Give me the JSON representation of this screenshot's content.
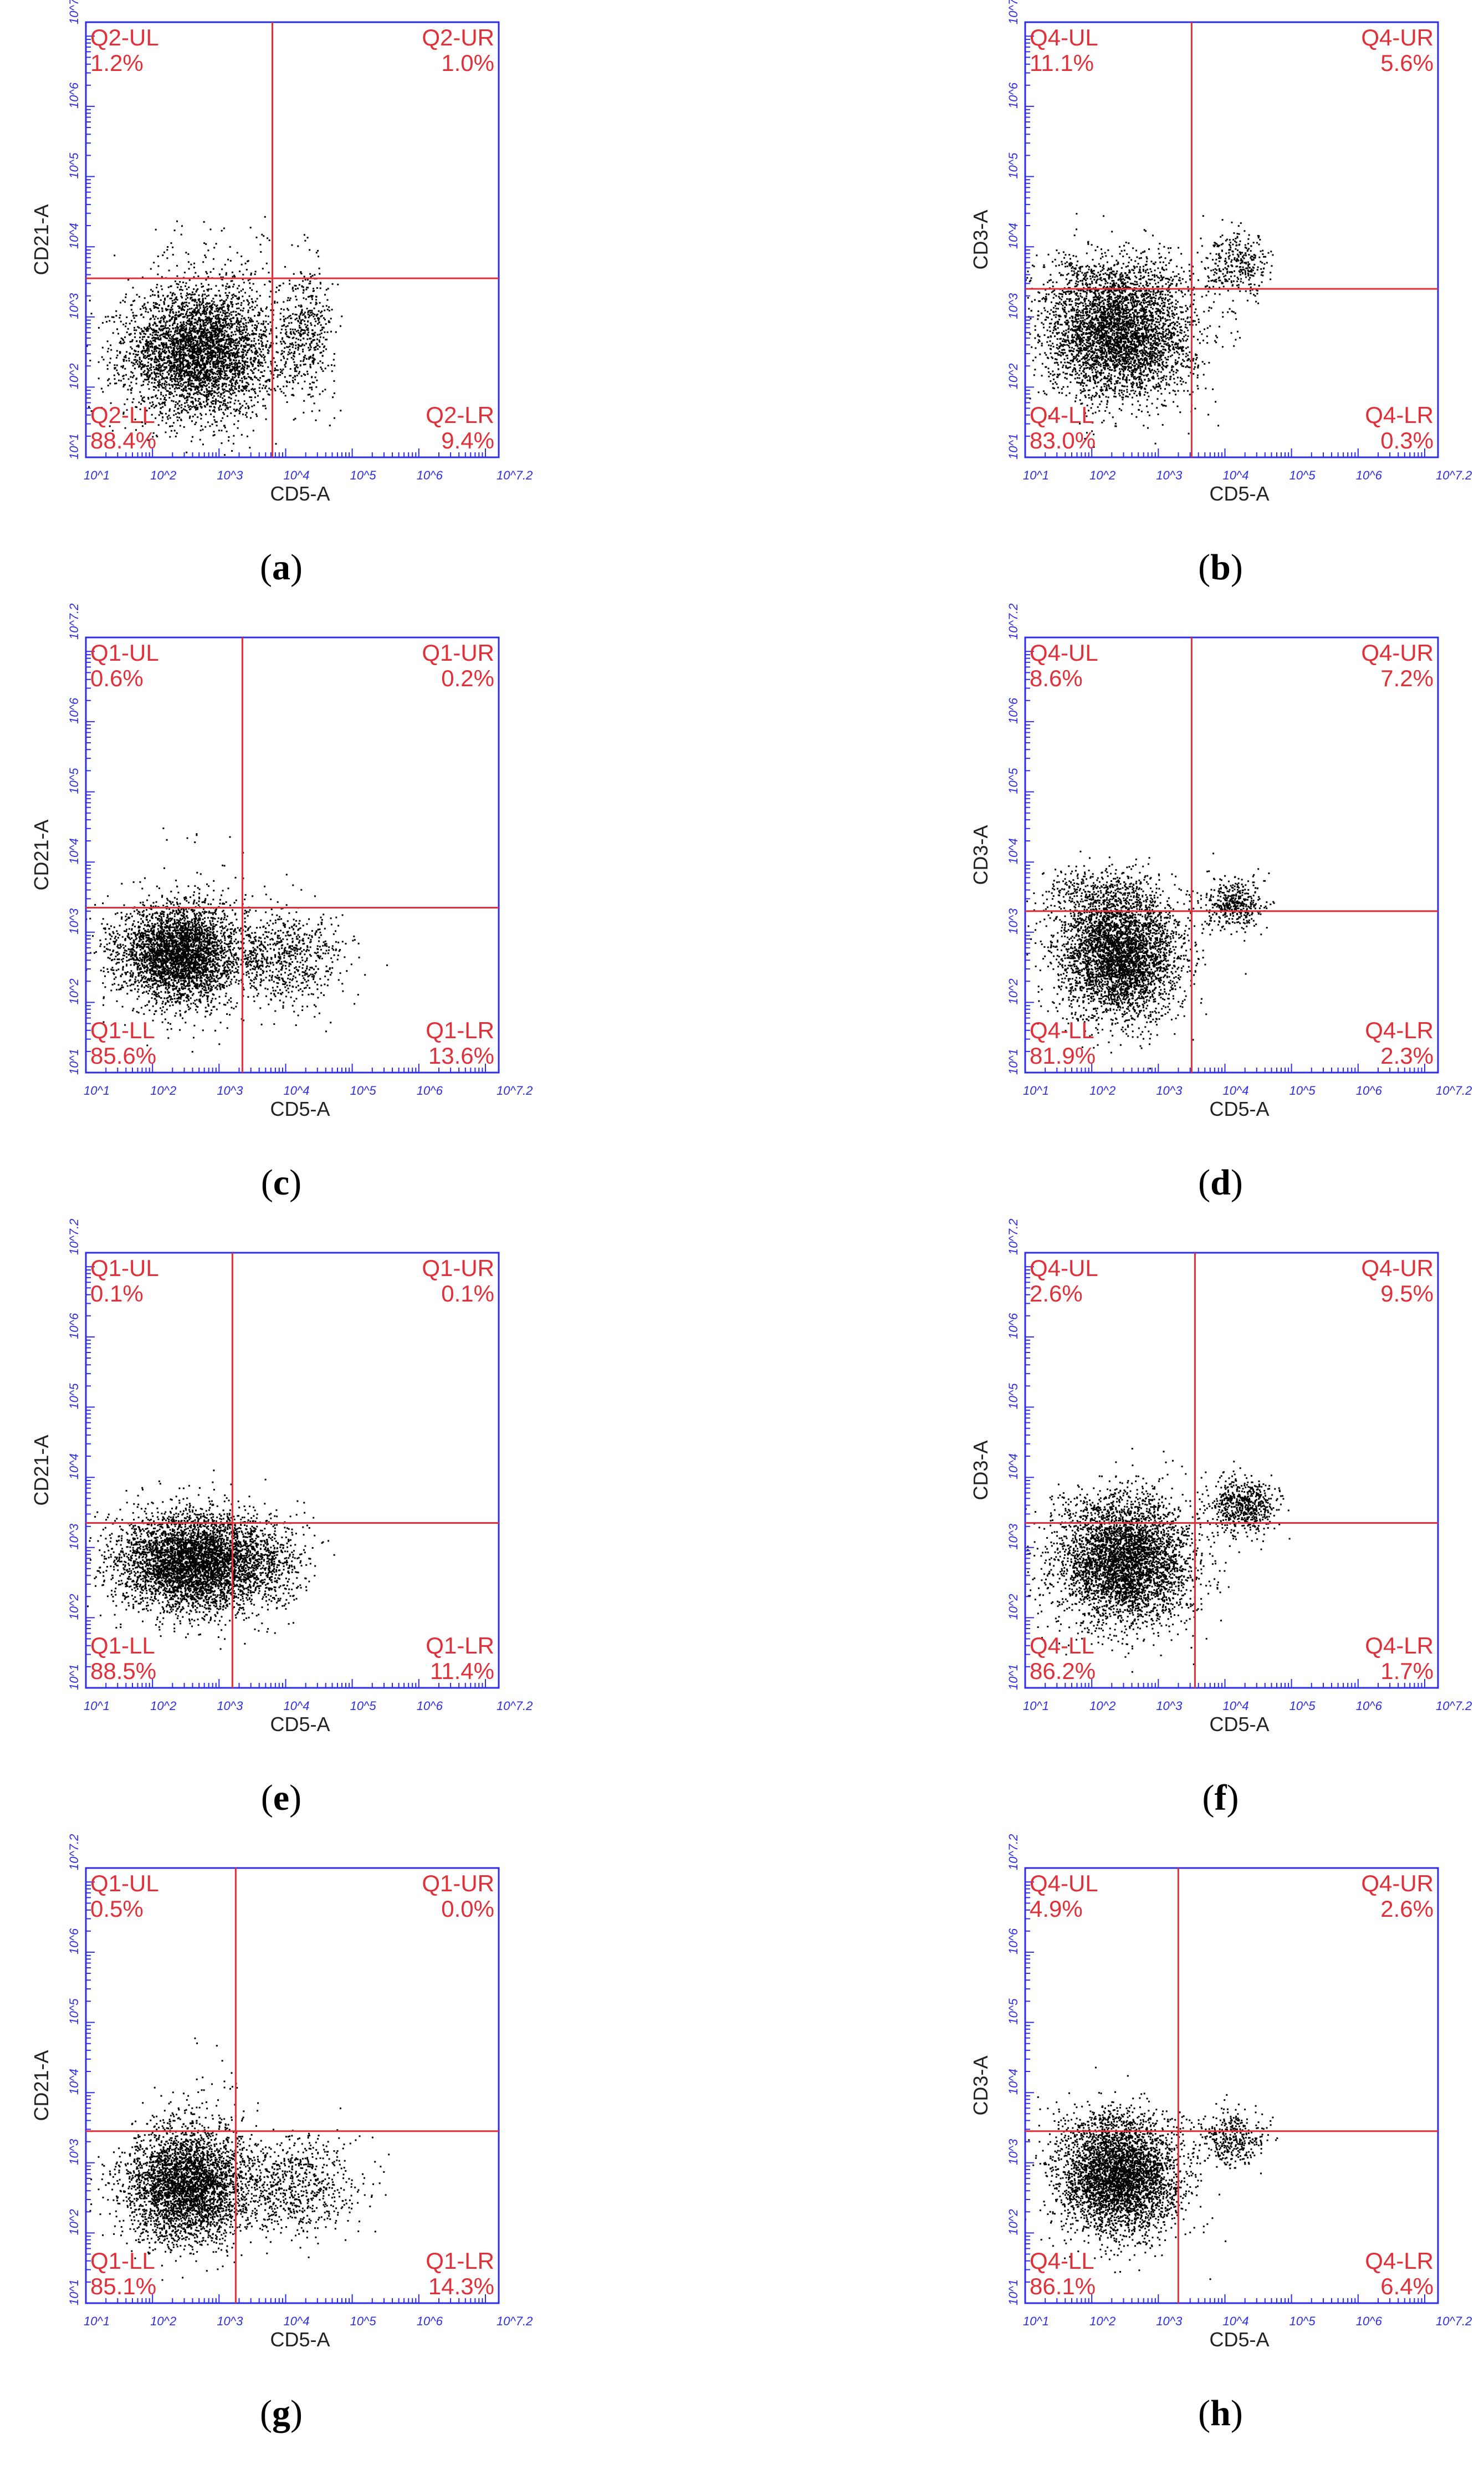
{
  "figure": {
    "panels": [
      {
        "letter": "a",
        "caption_open": "(",
        "caption_close": ")"
      },
      {
        "letter": "b",
        "caption_open": "(",
        "caption_close": ")"
      },
      {
        "letter": "c",
        "caption_open": "(",
        "caption_close": ")"
      },
      {
        "letter": "d",
        "caption_open": "(",
        "caption_close": ")"
      },
      {
        "letter": "e",
        "caption_open": "(",
        "caption_close": ")"
      },
      {
        "letter": "f",
        "caption_open": "(",
        "caption_close": ")"
      },
      {
        "letter": "g",
        "caption_open": "(",
        "caption_close": ")"
      },
      {
        "letter": "h",
        "caption_open": "(",
        "caption_close": ")"
      }
    ]
  },
  "colors": {
    "axis": "#2d2de6",
    "gate": "#e0303a",
    "points": "#000000",
    "caption": "#000000"
  },
  "chart_data": [
    {
      "type": "scatter",
      "panel": "a",
      "xlabel": "CD5-A",
      "ylabel": "CD21-A",
      "xlim": [
        1,
        7.2
      ],
      "ylim": [
        1,
        7.2
      ],
      "scale": "log10",
      "xticks": [
        "10^1",
        "10^2",
        "10^3",
        "10^4",
        "10^5",
        "10^6",
        "10^7.2"
      ],
      "yticks": [
        "10^1",
        "10^2",
        "10^3",
        "10^4",
        "10^5",
        "10^6",
        "10^7.2"
      ],
      "gate": {
        "x": 3.8,
        "y": 3.55
      },
      "quadrants": {
        "UL": "Q2-UL",
        "UR": "Q2-UR",
        "LL": "Q2-LL",
        "LR": "Q2-LR"
      },
      "percents": {
        "UL": "1.2%",
        "UR": "1.0%",
        "LL": "88.4%",
        "LR": "9.4%"
      },
      "clusters": [
        {
          "cx": 2.7,
          "cy": 2.5,
          "sx": 0.55,
          "sy": 0.45,
          "n": 4000
        },
        {
          "cx": 4.3,
          "cy": 2.8,
          "sx": 0.22,
          "sy": 0.45,
          "n": 450
        },
        {
          "cx": 3.0,
          "cy": 3.8,
          "sx": 0.6,
          "sy": 0.3,
          "n": 90
        }
      ]
    },
    {
      "type": "scatter",
      "panel": "b",
      "xlabel": "CD5-A",
      "ylabel": "CD3-A",
      "xlim": [
        1,
        7.2
      ],
      "ylim": [
        1,
        7.2
      ],
      "scale": "log10",
      "xticks": [
        "10^1",
        "10^2",
        "10^3",
        "10^4",
        "10^5",
        "10^6",
        "10^7.2"
      ],
      "yticks": [
        "10^1",
        "10^2",
        "10^3",
        "10^4",
        "10^5",
        "10^6",
        "10^7.2"
      ],
      "gate": {
        "x": 3.5,
        "y": 3.4
      },
      "quadrants": {
        "UL": "Q4-UL",
        "UR": "Q4-UR",
        "LL": "Q4-LL",
        "LR": "Q4-LR"
      },
      "percents": {
        "UL": "11.1%",
        "UR": "5.6%",
        "LL": "83.0%",
        "LR": "0.3%"
      },
      "clusters": [
        {
          "cx": 2.4,
          "cy": 2.75,
          "sx": 0.55,
          "sy": 0.45,
          "n": 3800
        },
        {
          "cx": 4.2,
          "cy": 3.75,
          "sx": 0.25,
          "sy": 0.22,
          "n": 320
        },
        {
          "cx": 2.3,
          "cy": 3.6,
          "sx": 0.6,
          "sy": 0.2,
          "n": 350
        }
      ]
    },
    {
      "type": "scatter",
      "panel": "c",
      "xlabel": "CD5-A",
      "ylabel": "CD21-A",
      "xlim": [
        1,
        7.2
      ],
      "ylim": [
        1,
        7.2
      ],
      "scale": "log10",
      "xticks": [
        "10^1",
        "10^2",
        "10^3",
        "10^4",
        "10^5",
        "10^6",
        "10^7.2"
      ],
      "yticks": [
        "10^1",
        "10^2",
        "10^3",
        "10^4",
        "10^5",
        "10^6",
        "10^7.2"
      ],
      "gate": {
        "x": 3.35,
        "y": 3.35
      },
      "quadrants": {
        "UL": "Q1-UL",
        "UR": "Q1-UR",
        "LL": "Q1-LL",
        "LR": "Q1-LR"
      },
      "percents": {
        "UL": "0.6%",
        "UR": "0.2%",
        "LL": "85.6%",
        "LR": "13.6%"
      },
      "clusters": [
        {
          "cx": 2.4,
          "cy": 2.7,
          "sx": 0.45,
          "sy": 0.35,
          "n": 3600
        },
        {
          "cx": 4.0,
          "cy": 2.65,
          "sx": 0.45,
          "sy": 0.35,
          "n": 700
        },
        {
          "cx": 2.8,
          "cy": 3.9,
          "sx": 0.4,
          "sy": 0.3,
          "n": 20
        }
      ]
    },
    {
      "type": "scatter",
      "panel": "d",
      "xlabel": "CD5-A",
      "ylabel": "CD3-A",
      "xlim": [
        1,
        7.2
      ],
      "ylim": [
        1,
        7.2
      ],
      "scale": "log10",
      "xticks": [
        "10^1",
        "10^2",
        "10^3",
        "10^4",
        "10^5",
        "10^6",
        "10^7.2"
      ],
      "yticks": [
        "10^1",
        "10^2",
        "10^3",
        "10^4",
        "10^5",
        "10^6",
        "10^7.2"
      ],
      "gate": {
        "x": 3.5,
        "y": 3.3
      },
      "quadrants": {
        "UL": "Q4-UL",
        "UR": "Q4-UR",
        "LL": "Q4-LL",
        "LR": "Q4-LR"
      },
      "percents": {
        "UL": "8.6%",
        "UR": "7.2%",
        "LL": "81.9%",
        "LR": "2.3%"
      },
      "clusters": [
        {
          "cx": 2.4,
          "cy": 2.7,
          "sx": 0.45,
          "sy": 0.45,
          "n": 3700
        },
        {
          "cx": 4.1,
          "cy": 3.4,
          "sx": 0.22,
          "sy": 0.18,
          "n": 420
        },
        {
          "cx": 2.2,
          "cy": 3.55,
          "sx": 0.5,
          "sy": 0.2,
          "n": 300
        }
      ]
    },
    {
      "type": "scatter",
      "panel": "e",
      "xlabel": "CD5-A",
      "ylabel": "CD21-A",
      "xlim": [
        1,
        7.2
      ],
      "ylim": [
        1,
        7.2
      ],
      "scale": "log10",
      "xticks": [
        "10^1",
        "10^2",
        "10^3",
        "10^4",
        "10^5",
        "10^6",
        "10^7.2"
      ],
      "yticks": [
        "10^1",
        "10^2",
        "10^3",
        "10^4",
        "10^5",
        "10^6",
        "10^7.2"
      ],
      "gate": {
        "x": 3.2,
        "y": 3.35
      },
      "quadrants": {
        "UL": "Q1-UL",
        "UR": "Q1-UR",
        "LL": "Q1-LL",
        "LR": "Q1-LR"
      },
      "percents": {
        "UL": "0.1%",
        "UR": "0.1%",
        "LL": "88.5%",
        "LR": "11.4%"
      },
      "clusters": [
        {
          "cx": 2.6,
          "cy": 2.8,
          "sx": 0.55,
          "sy": 0.35,
          "n": 4400
        },
        {
          "cx": 3.7,
          "cy": 2.75,
          "sx": 0.35,
          "sy": 0.3,
          "n": 400
        }
      ]
    },
    {
      "type": "scatter",
      "panel": "f",
      "xlabel": "CD5-A",
      "ylabel": "CD3-A",
      "xlim": [
        1,
        7.2
      ],
      "ylim": [
        1,
        7.2
      ],
      "scale": "log10",
      "xticks": [
        "10^1",
        "10^2",
        "10^3",
        "10^4",
        "10^5",
        "10^6",
        "10^7.2"
      ],
      "yticks": [
        "10^1",
        "10^2",
        "10^3",
        "10^4",
        "10^5",
        "10^6",
        "10^7.2"
      ],
      "gate": {
        "x": 3.55,
        "y": 3.35
      },
      "quadrants": {
        "UL": "Q4-UL",
        "UR": "Q4-UR",
        "LL": "Q4-LL",
        "LR": "Q4-LR"
      },
      "percents": {
        "UL": "2.6%",
        "UR": "9.5%",
        "LL": "86.2%",
        "LR": "1.7%"
      },
      "clusters": [
        {
          "cx": 2.5,
          "cy": 2.8,
          "sx": 0.5,
          "sy": 0.45,
          "n": 3900
        },
        {
          "cx": 4.25,
          "cy": 3.6,
          "sx": 0.25,
          "sy": 0.2,
          "n": 600
        },
        {
          "cx": 2.3,
          "cy": 3.5,
          "sx": 0.5,
          "sy": 0.15,
          "n": 120
        }
      ]
    },
    {
      "type": "scatter",
      "panel": "g",
      "xlabel": "CD5-A",
      "ylabel": "CD21-A",
      "xlim": [
        1,
        7.2
      ],
      "ylim": [
        1,
        7.2
      ],
      "scale": "log10",
      "xticks": [
        "10^1",
        "10^2",
        "10^3",
        "10^4",
        "10^5",
        "10^6",
        "10^7.2"
      ],
      "yticks": [
        "10^1",
        "10^2",
        "10^3",
        "10^4",
        "10^5",
        "10^6",
        "10^7.2"
      ],
      "gate": {
        "x": 3.25,
        "y": 3.45
      },
      "quadrants": {
        "UL": "Q1-UL",
        "UR": "Q1-UR",
        "LL": "Q1-LL",
        "LR": "Q1-LR"
      },
      "percents": {
        "UL": "0.5%",
        "UR": "0.0%",
        "LL": "85.1%",
        "LR": "14.3%"
      },
      "clusters": [
        {
          "cx": 2.5,
          "cy": 2.7,
          "sx": 0.45,
          "sy": 0.4,
          "n": 3500
        },
        {
          "cx": 4.1,
          "cy": 2.7,
          "sx": 0.5,
          "sy": 0.35,
          "n": 750
        },
        {
          "cx": 2.7,
          "cy": 3.9,
          "sx": 0.4,
          "sy": 0.35,
          "n": 40
        }
      ]
    },
    {
      "type": "scatter",
      "panel": "h",
      "xlabel": "CD5-A",
      "ylabel": "CD3-A",
      "xlim": [
        1,
        7.2
      ],
      "ylim": [
        1,
        7.2
      ],
      "scale": "log10",
      "xticks": [
        "10^1",
        "10^2",
        "10^3",
        "10^4",
        "10^5",
        "10^6",
        "10^7.2"
      ],
      "yticks": [
        "10^1",
        "10^2",
        "10^3",
        "10^4",
        "10^5",
        "10^6",
        "10^7.2"
      ],
      "gate": {
        "x": 3.3,
        "y": 3.45
      },
      "quadrants": {
        "UL": "Q4-UL",
        "UR": "Q4-UR",
        "LL": "Q4-LL",
        "LR": "Q4-LR"
      },
      "percents": {
        "UL": "4.9%",
        "UR": "2.6%",
        "LL": "86.1%",
        "LR": "6.4%"
      },
      "clusters": [
        {
          "cx": 2.4,
          "cy": 2.8,
          "sx": 0.45,
          "sy": 0.4,
          "n": 3800
        },
        {
          "cx": 4.1,
          "cy": 3.35,
          "sx": 0.25,
          "sy": 0.2,
          "n": 350
        },
        {
          "cx": 2.3,
          "cy": 3.55,
          "sx": 0.5,
          "sy": 0.15,
          "n": 150
        }
      ]
    }
  ]
}
